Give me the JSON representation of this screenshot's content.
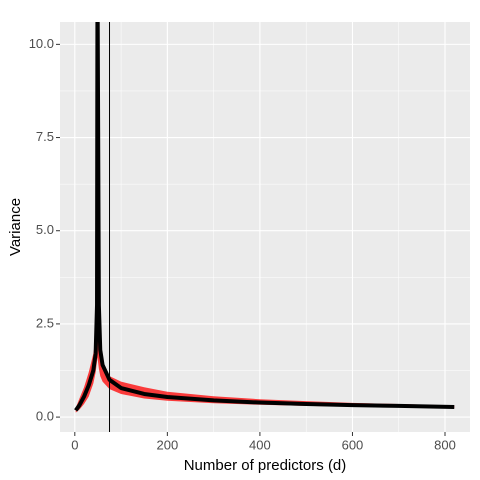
{
  "chart_data": {
    "type": "line",
    "x_label": "Number of predictors (d)",
    "y_label": "Variance",
    "x": [
      2,
      10,
      20,
      30,
      40,
      45,
      48,
      49,
      52,
      55,
      60,
      75,
      100,
      150,
      200,
      300,
      400,
      500,
      600,
      700,
      820
    ],
    "line": {
      "color": "#000000",
      "values": [
        0.18,
        0.32,
        0.55,
        0.85,
        1.25,
        1.7,
        3.0,
        12,
        3.0,
        1.8,
        1.4,
        1.0,
        0.78,
        0.62,
        0.54,
        0.45,
        0.39,
        0.35,
        0.32,
        0.3,
        0.27
      ]
    },
    "band": {
      "color": "#ff0000",
      "lower": [
        0.12,
        0.2,
        0.35,
        0.55,
        0.9,
        1.2,
        1.5,
        1.6,
        1.3,
        1.1,
        0.95,
        0.75,
        0.62,
        0.5,
        0.44,
        0.37,
        0.33,
        0.3,
        0.28,
        0.26,
        0.24
      ],
      "upper": [
        0.25,
        0.5,
        0.8,
        1.2,
        1.7,
        2.1,
        2.5,
        2.5,
        2.1,
        1.7,
        1.4,
        1.1,
        0.95,
        0.8,
        0.68,
        0.56,
        0.48,
        0.43,
        0.38,
        0.35,
        0.31
      ]
    },
    "vline": {
      "value": 75,
      "color": "#000000"
    },
    "xlim": [
      -32,
      854
    ],
    "ylim": [
      -0.4,
      10.6
    ],
    "xticks": [
      0,
      200,
      400,
      600,
      800
    ],
    "yticks": [
      {
        "value": 0,
        "label": "0.0"
      },
      2.5,
      {
        "value": 5,
        "label": "5.0"
      },
      7.5,
      {
        "value": 10,
        "label": "10.0"
      }
    ],
    "x_minor_ticks": [
      100,
      300,
      500,
      700
    ],
    "y_minor_ticks": [
      1.25,
      3.75,
      6.25,
      8.75
    ],
    "grid": true
  }
}
